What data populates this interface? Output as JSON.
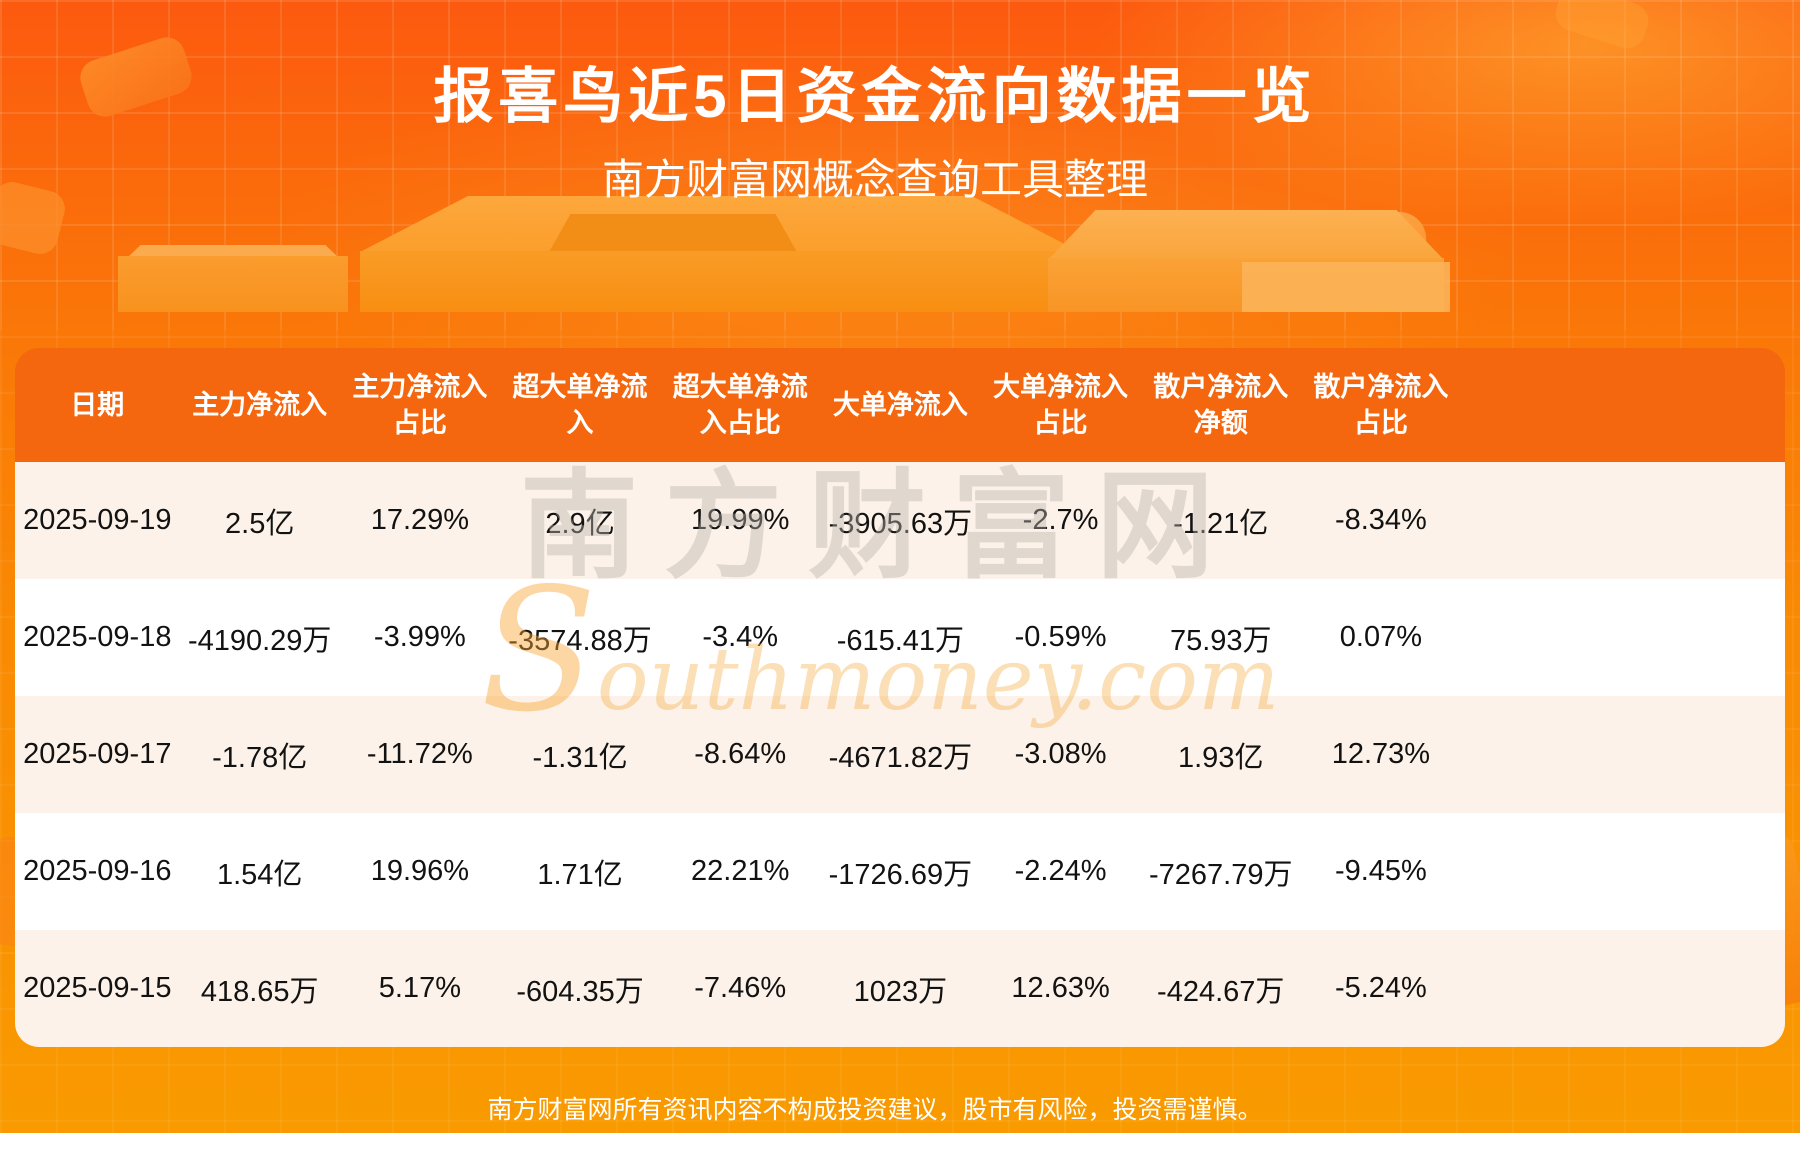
{
  "header": {
    "title": "报喜鸟近5日资金流向数据一览",
    "subtitle": "南方财富网概念查询工具整理"
  },
  "watermark": {
    "cn": "南方财富网",
    "en": "Southmoney.com"
  },
  "footer": {
    "disclaimer": "南方财富网所有资讯内容不构成投资建议，股市有风险，投资需谨慎。"
  },
  "colors": {
    "background_top": "#fc5a0f",
    "background_bottom": "#f99a00",
    "table_header_bg": "#f5670f",
    "row_cream": "#fcf2e9",
    "row_white": "#ffffff",
    "text_dark": "#121212",
    "text_white": "#ffffff"
  },
  "chart_data": {
    "type": "table",
    "title": "报喜鸟近5日资金流向数据一览",
    "columns": [
      "日期",
      "主力净流入",
      "主力净流入占比",
      "超大单净流入",
      "超大单净流入占比",
      "大单净流入",
      "大单净流入占比",
      "散户净流入净额",
      "散户净流入占比"
    ],
    "rows": [
      [
        "2025-09-19",
        "2.5亿",
        "17.29%",
        "2.9亿",
        "19.99%",
        "-3905.63万",
        "-2.7%",
        "-1.21亿",
        "-8.34%"
      ],
      [
        "2025-09-18",
        "-4190.29万",
        "-3.99%",
        "-3574.88万",
        "-3.4%",
        "-615.41万",
        "-0.59%",
        "75.93万",
        "0.07%"
      ],
      [
        "2025-09-17",
        "-1.78亿",
        "-11.72%",
        "-1.31亿",
        "-8.64%",
        "-4671.82万",
        "-3.08%",
        "1.93亿",
        "12.73%"
      ],
      [
        "2025-09-16",
        "1.54亿",
        "19.96%",
        "1.71亿",
        "22.21%",
        "-1726.69万",
        "-2.24%",
        "-7267.79万",
        "-9.45%"
      ],
      [
        "2025-09-15",
        "418.65万",
        "5.17%",
        "-604.35万",
        "-7.46%",
        "1023万",
        "12.63%",
        "-424.67万",
        "-5.24%"
      ]
    ]
  }
}
